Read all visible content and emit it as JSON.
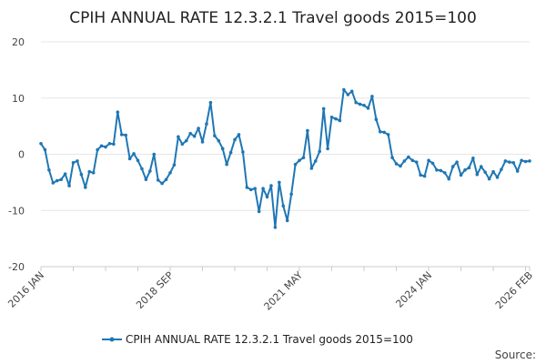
{
  "chart_data": {
    "type": "line",
    "title": "CPIH ANNUAL RATE 12.3.2.1 Travel goods 2015=100",
    "xlabel": "",
    "ylabel": "",
    "ylim": [
      -20,
      20
    ],
    "yticks": [
      -20,
      -10,
      0,
      10,
      20
    ],
    "xtick_labels": [
      "2016 JAN",
      "2018 SEP",
      "2021 MAY",
      "2024 JAN",
      "2026 FEB"
    ],
    "xtick_label_index": [
      0,
      32,
      64,
      96,
      121
    ],
    "x_start": "2016 JAN",
    "x_end": "2026 FEB",
    "grid": true,
    "legend_position": "bottom-center",
    "series": [
      {
        "name": "CPIH ANNUAL RATE 12.3.2.1 Travel goods 2015=100",
        "color": "#1f77b4",
        "values": [
          1.9,
          0.8,
          -2.8,
          -5.1,
          -4.7,
          -4.5,
          -3.5,
          -5.6,
          -1.5,
          -1.2,
          -3.6,
          -5.9,
          -3.1,
          -3.3,
          0.8,
          1.5,
          1.3,
          1.9,
          1.8,
          7.5,
          3.5,
          3.4,
          -0.8,
          0.1,
          -1.1,
          -2.6,
          -4.5,
          -3.0,
          0.0,
          -4.6,
          -5.2,
          -4.5,
          -3.3,
          -1.9,
          3.1,
          1.8,
          2.4,
          3.7,
          3.2,
          4.6,
          2.2,
          5.4,
          9.2,
          3.3,
          2.4,
          1.0,
          -1.8,
          0.3,
          2.6,
          3.5,
          0.4,
          -5.9,
          -6.3,
          -6.1,
          -10.2,
          -6.1,
          -7.6,
          -5.6,
          -13.0,
          -5.0,
          -9.2,
          -11.8,
          -7.1,
          -1.8,
          -1.1,
          -0.6,
          4.2,
          -2.5,
          -1.2,
          0.5,
          8.1,
          1.0,
          6.6,
          6.3,
          6.0,
          11.5,
          10.6,
          11.2,
          9.2,
          8.9,
          8.7,
          8.2,
          10.3,
          6.2,
          4.0,
          3.9,
          3.5,
          -0.6,
          -1.7,
          -2.1,
          -1.2,
          -0.5,
          -1.1,
          -1.4,
          -3.7,
          -3.9,
          -1.1,
          -1.6,
          -2.8,
          -2.9,
          -3.3,
          -4.4,
          -2.2,
          -1.4,
          -3.7,
          -2.8,
          -2.4,
          -0.7,
          -3.6,
          -2.2,
          -3.2,
          -4.4,
          -3.1,
          -4.1,
          -2.7,
          -1.2,
          -1.4,
          -1.5,
          -3.0,
          -1.1,
          -1.3,
          -1.2
        ]
      }
    ]
  },
  "footer": {
    "source_label": "Source:"
  }
}
